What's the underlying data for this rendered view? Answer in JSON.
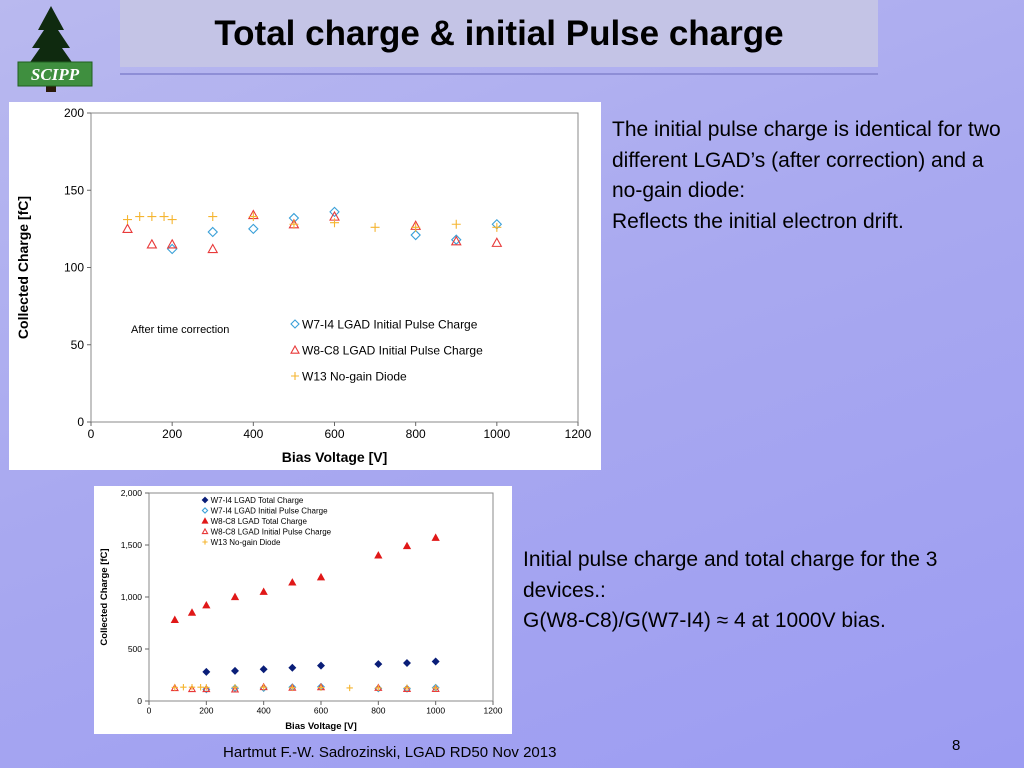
{
  "slide": {
    "title": "Total charge & initial Pulse charge",
    "logo_text": "SCIPP",
    "footer": "Hartmut F.-W. Sadrozinski, LGAD RD50 Nov 2013",
    "page_number": "8",
    "text1": [
      "The initial pulse charge is identical for two different LGAD’s (after correction) and a no-gain diode:",
      "Reflects the initial electron drift."
    ],
    "text2": [
      "Initial pulse charge and total charge for the 3 devices.:",
      "G(W8-C8)/G(W7-I4) ≈ 4 at 1000V bias."
    ]
  },
  "colors": {
    "w7": "#3aa0d8",
    "w8": "#e83a3a",
    "w13": "#f5b530",
    "w7_total": "#0a1e78",
    "w8_total": "#e01818"
  },
  "chart_data": [
    {
      "type": "scatter",
      "xlabel": "Bias Voltage [V]",
      "ylabel": "Collected Charge [fC]",
      "xlim": [
        0,
        1200
      ],
      "ylim": [
        0,
        200
      ],
      "xticks": [
        "0",
        "200",
        "400",
        "600",
        "800",
        "1000",
        "1200"
      ],
      "yticks": [
        "0",
        "50",
        "100",
        "150",
        "200"
      ],
      "annotation": "After time correction",
      "grid": false,
      "legend_position": "lower-center",
      "series": [
        {
          "name": "W7-I4  LGAD Initial Pulse Charge",
          "marker": "diamond-open",
          "x": [
            200,
            300,
            400,
            500,
            600,
            800,
            900,
            1000
          ],
          "y": [
            112,
            123,
            125,
            132,
            136,
            121,
            118,
            128
          ]
        },
        {
          "name": "W8-C8 LGAD Initial Pulse Charge",
          "marker": "triangle-open",
          "x": [
            90,
            150,
            200,
            300,
            400,
            500,
            600,
            800,
            900,
            1000
          ],
          "y": [
            125,
            115,
            115,
            112,
            134,
            128,
            133,
            127,
            117,
            116
          ]
        },
        {
          "name": "W13 No-gain Diode",
          "marker": "plus",
          "x": [
            90,
            120,
            150,
            180,
            200,
            300,
            400,
            500,
            600,
            700,
            800,
            900,
            1000
          ],
          "y": [
            131,
            133,
            133,
            133,
            131,
            133,
            133,
            128,
            129,
            126,
            126,
            128,
            126
          ]
        }
      ]
    },
    {
      "type": "scatter",
      "xlabel": "Bias Voltage [V]",
      "ylabel": "Collected Charge [fC]",
      "xlim": [
        0,
        1200
      ],
      "ylim": [
        0,
        2000
      ],
      "xticks": [
        "0",
        "200",
        "400",
        "600",
        "800",
        "1000",
        "1200"
      ],
      "yticks": [
        "0",
        "500",
        "1,000",
        "1,500",
        "2,000"
      ],
      "grid": false,
      "legend_position": "top-left",
      "series": [
        {
          "name": "W7-I4  LGAD Total Charge",
          "marker": "diamond-filled",
          "x": [
            200,
            300,
            400,
            500,
            600,
            800,
            900,
            1000
          ],
          "y": [
            280,
            290,
            305,
            320,
            340,
            355,
            365,
            380
          ]
        },
        {
          "name": "W7-I4  LGAD Initial Pulse Charge",
          "marker": "diamond-open",
          "x": [
            200,
            300,
            400,
            500,
            600,
            800,
            900,
            1000
          ],
          "y": [
            112,
            123,
            125,
            132,
            136,
            121,
            118,
            128
          ]
        },
        {
          "name": "W8-C8 LGAD Total Charge",
          "marker": "triangle-filled",
          "x": [
            90,
            150,
            200,
            300,
            400,
            500,
            600,
            800,
            900,
            1000
          ],
          "y": [
            780,
            850,
            920,
            1000,
            1050,
            1140,
            1190,
            1400,
            1490,
            1570
          ]
        },
        {
          "name": "W8-C8 LGAD Initial Pulse Charge",
          "marker": "triangle-open",
          "x": [
            90,
            150,
            200,
            300,
            400,
            500,
            600,
            800,
            900,
            1000
          ],
          "y": [
            125,
            115,
            115,
            112,
            134,
            128,
            133,
            127,
            117,
            116
          ]
        },
        {
          "name": "W13 No-gain Diode",
          "marker": "plus",
          "x": [
            90,
            120,
            150,
            180,
            200,
            300,
            400,
            500,
            600,
            700,
            800,
            900,
            1000
          ],
          "y": [
            131,
            133,
            133,
            133,
            131,
            133,
            133,
            128,
            129,
            126,
            126,
            128,
            126
          ]
        }
      ]
    }
  ]
}
